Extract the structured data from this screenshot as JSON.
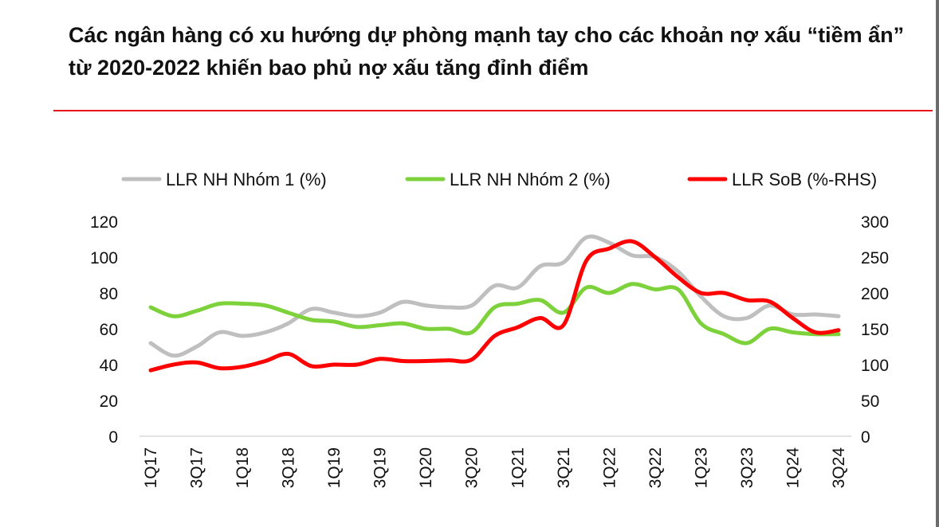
{
  "chart_data": {
    "type": "line",
    "title": "Các ngân hàng có xu hướng dự phòng mạnh tay cho các khoản nợ xấu “tiềm ẩn” từ 2020-2022 khiến bao phủ nợ xấu tăng đỉnh điểm",
    "x": [
      "1Q17",
      "2Q17",
      "3Q17",
      "4Q17",
      "1Q18",
      "2Q18",
      "3Q18",
      "4Q18",
      "1Q19",
      "2Q19",
      "3Q19",
      "4Q19",
      "1Q20",
      "2Q20",
      "3Q20",
      "4Q20",
      "1Q21",
      "2Q21",
      "3Q21",
      "4Q21",
      "1Q22",
      "2Q22",
      "3Q22",
      "4Q22",
      "1Q23",
      "2Q23",
      "3Q23",
      "4Q23",
      "1Q24",
      "2Q24",
      "3Q24"
    ],
    "x_tick_labels": [
      "1Q17",
      "3Q17",
      "1Q18",
      "3Q18",
      "1Q19",
      "3Q19",
      "1Q20",
      "3Q20",
      "1Q21",
      "3Q21",
      "1Q22",
      "3Q22",
      "1Q23",
      "3Q23",
      "1Q24",
      "3Q24"
    ],
    "y_left": {
      "ylim": [
        0,
        120
      ],
      "ticks": [
        "0",
        "20",
        "40",
        "60",
        "80",
        "100",
        "120"
      ]
    },
    "y_right": {
      "ylim": [
        0,
        300
      ],
      "ticks": [
        "0",
        "50",
        "100",
        "150",
        "200",
        "250",
        "300"
      ]
    },
    "legend_position": "top",
    "grid": false,
    "series": [
      {
        "name": "LLR NH Nhóm 1 (%)",
        "axis": "left",
        "color": "#bfbfbf",
        "values": [
          52,
          45,
          50,
          58,
          56,
          58,
          63,
          71,
          69,
          67,
          69,
          75,
          73,
          72,
          73,
          84,
          83,
          95,
          97,
          111,
          108,
          101,
          100,
          92,
          78,
          67,
          66,
          73,
          68,
          68,
          67
        ]
      },
      {
        "name": "LLR NH Nhóm 2 (%)",
        "axis": "left",
        "color": "#7dd13a",
        "values": [
          72,
          67,
          70,
          74,
          74,
          73,
          69,
          65,
          64,
          61,
          62,
          63,
          60,
          60,
          58,
          72,
          74,
          76,
          69,
          83,
          80,
          85,
          82,
          82,
          63,
          57,
          52,
          60,
          58,
          57,
          57
        ]
      },
      {
        "name": "LLR SoB (%-RHS)",
        "axis": "right",
        "color": "#ff0000",
        "values": [
          92,
          100,
          103,
          95,
          97,
          105,
          115,
          98,
          100,
          100,
          108,
          105,
          105,
          106,
          107,
          140,
          152,
          165,
          155,
          245,
          262,
          272,
          250,
          222,
          200,
          200,
          190,
          188,
          165,
          145,
          148
        ]
      }
    ]
  }
}
